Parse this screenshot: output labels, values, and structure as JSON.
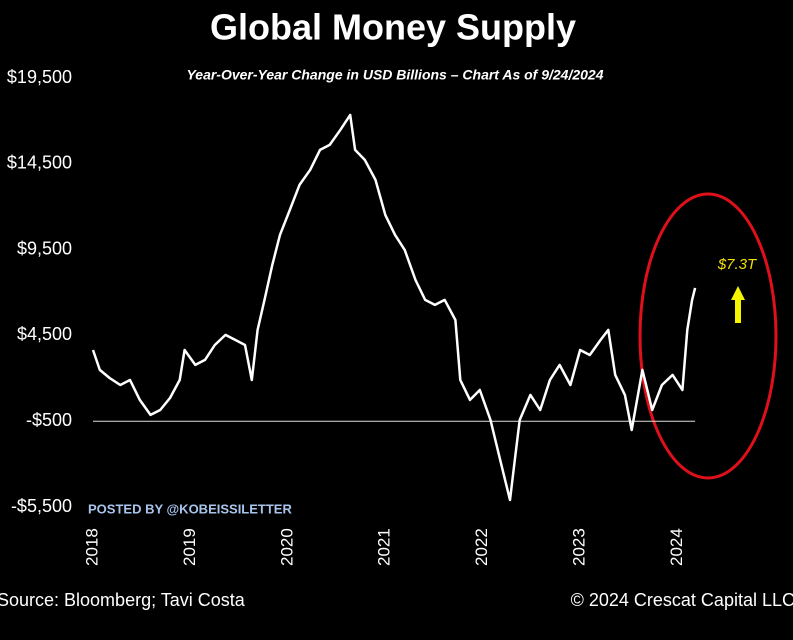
{
  "chart_data": {
    "type": "line",
    "title": "Global Money Supply",
    "subtitle": "Year-Over-Year Change in USD Billions – Chart As of 9/24/2024",
    "annotation": "$7.3T",
    "watermark": "POSTED BY @KOBEISSILETTER",
    "source": "Source: Bloomberg; Tavi Costa",
    "copyright": "© 2024 Crescat Capital LLC",
    "xlim": [
      2018,
      2024.2
    ],
    "xticks": [
      2018,
      2019,
      2020,
      2021,
      2022,
      2023,
      2024
    ],
    "ylim": [
      -5500,
      19500
    ],
    "yticks": [
      {
        "value": -5500,
        "label": "-$5,500"
      },
      {
        "value": -500,
        "label": "-$500"
      },
      {
        "value": 4500,
        "label": "$4,500"
      },
      {
        "value": 9500,
        "label": "$9,500"
      },
      {
        "value": 14500,
        "label": "$14,500"
      },
      {
        "value": 19500,
        "label": "$19,500"
      }
    ],
    "color": "#ffffff",
    "x": [
      2018.0,
      2018.07,
      2018.17,
      2018.28,
      2018.38,
      2018.48,
      2018.59,
      2018.69,
      2018.79,
      2018.89,
      2018.94,
      2019.05,
      2019.15,
      2019.25,
      2019.36,
      2019.46,
      2019.56,
      2019.63,
      2019.69,
      2019.76,
      2019.84,
      2019.92,
      2020.02,
      2020.12,
      2020.23,
      2020.33,
      2020.43,
      2020.54,
      2020.64,
      2020.69,
      2020.79,
      2020.9,
      2021.0,
      2021.1,
      2021.2,
      2021.31,
      2021.41,
      2021.51,
      2021.61,
      2021.72,
      2021.77,
      2021.87,
      2021.97,
      2022.08,
      2022.18,
      2022.23,
      2022.28,
      2022.33,
      2022.38,
      2022.49,
      2022.59,
      2022.69,
      2022.79,
      2022.9,
      2023.0,
      2023.1,
      2023.21,
      2023.29,
      2023.36,
      2023.46,
      2023.53,
      2023.64,
      2023.74,
      2023.84,
      2023.95,
      2024.05,
      2024.1,
      2024.15,
      2024.18
    ],
    "values": [
      3650,
      2490,
      2020,
      1610,
      1900,
      740,
      -130,
      150,
      850,
      1900,
      3650,
      2780,
      3070,
      3940,
      4530,
      4240,
      3940,
      1900,
      4820,
      6570,
      8610,
      10360,
      11810,
      13270,
      14150,
      15310,
      15600,
      16480,
      17350,
      15310,
      14730,
      13560,
      11520,
      10360,
      9480,
      7730,
      6570,
      6280,
      6570,
      5400,
      1900,
      740,
      1320,
      -430,
      -2760,
      -3930,
      -5090,
      -2760,
      -430,
      1030,
      150,
      1900,
      2780,
      1610,
      3650,
      3360,
      4240,
      4820,
      2200,
      1030,
      -1010,
      2490,
      150,
      1610,
      2200,
      1320,
      4820,
      6570,
      7270
    ]
  }
}
